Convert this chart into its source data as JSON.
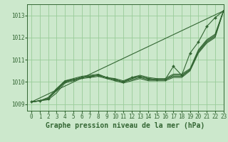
{
  "bg_color": "#cce8cc",
  "grid_color": "#99cc99",
  "line_color": "#336633",
  "xlabel": "Graphe pression niveau de la mer (hPa)",
  "xlim": [
    -0.5,
    23
  ],
  "ylim": [
    1008.7,
    1013.5
  ],
  "yticks": [
    1009,
    1010,
    1011,
    1012,
    1013
  ],
  "xticks": [
    0,
    1,
    2,
    3,
    4,
    5,
    6,
    7,
    8,
    9,
    10,
    11,
    12,
    13,
    14,
    15,
    16,
    17,
    18,
    19,
    20,
    21,
    22,
    23
  ],
  "series_plain": [
    [
      1009.1,
      1009.15,
      1009.2,
      1009.5,
      1009.95,
      1010.05,
      1010.15,
      1010.2,
      1010.25,
      1010.15,
      1010.05,
      1009.95,
      1010.05,
      1010.15,
      1010.05,
      1010.05,
      1010.05,
      1010.2,
      1010.2,
      1010.5,
      1011.3,
      1011.75,
      1012.0,
      1013.2
    ],
    [
      1009.1,
      1009.15,
      1009.25,
      1009.6,
      1010.0,
      1010.1,
      1010.2,
      1010.25,
      1010.3,
      1010.2,
      1010.1,
      1010.0,
      1010.1,
      1010.2,
      1010.1,
      1010.1,
      1010.1,
      1010.25,
      1010.25,
      1010.55,
      1011.35,
      1011.8,
      1012.05,
      1013.2
    ],
    [
      1009.1,
      1009.15,
      1009.25,
      1009.65,
      1010.05,
      1010.1,
      1010.2,
      1010.25,
      1010.3,
      1010.2,
      1010.1,
      1010.0,
      1010.15,
      1010.25,
      1010.15,
      1010.1,
      1010.1,
      1010.3,
      1010.3,
      1010.55,
      1011.4,
      1011.85,
      1012.1,
      1013.2
    ]
  ],
  "series_marker": [
    1009.1,
    1009.15,
    1009.25,
    1009.65,
    1010.0,
    1010.1,
    1010.2,
    1010.25,
    1010.3,
    1010.2,
    1010.1,
    1010.0,
    1010.2,
    1010.25,
    1010.15,
    1010.1,
    1010.1,
    1010.7,
    1010.3,
    1011.3,
    1011.8,
    1012.5,
    1012.9,
    1013.2
  ],
  "series_high": [
    1009.1,
    1009.15,
    1009.3,
    1009.7,
    1010.05,
    1010.15,
    1010.25,
    1010.3,
    1010.35,
    1010.2,
    1010.15,
    1010.05,
    1010.2,
    1010.3,
    1010.2,
    1010.15,
    1010.15,
    1010.35,
    1010.35,
    1010.6,
    1011.45,
    1011.9,
    1012.15,
    1013.2
  ],
  "label_fontsize": 7,
  "tick_fontsize": 5.5
}
